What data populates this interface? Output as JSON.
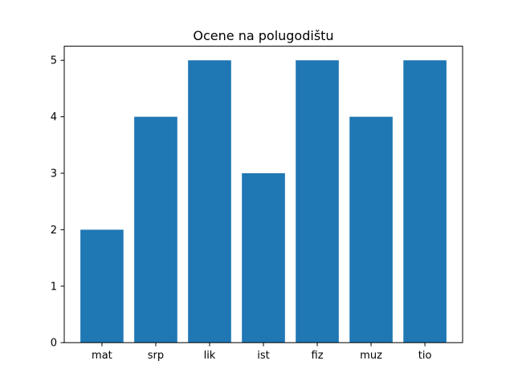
{
  "chart_data": {
    "type": "bar",
    "title": "Ocene na polugodištu",
    "xlabel": "",
    "ylabel": "",
    "categories": [
      "mat",
      "srp",
      "lik",
      "ist",
      "fiz",
      "muz",
      "tio"
    ],
    "values": [
      2,
      4,
      5,
      3,
      5,
      4,
      5
    ],
    "ylim": [
      0,
      5.25
    ],
    "yticks": [
      0,
      1,
      2,
      3,
      4,
      5
    ],
    "bar_color": "#1f77b4",
    "grid": false,
    "legend": false
  }
}
